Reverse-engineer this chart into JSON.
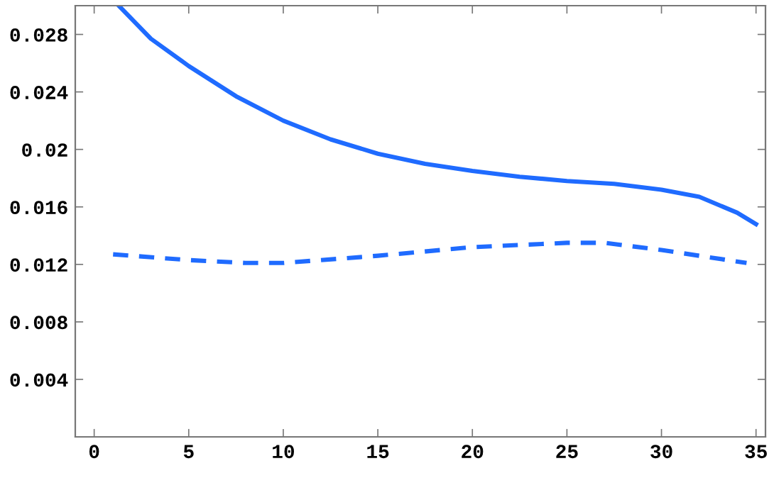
{
  "chart_data": {
    "type": "line",
    "xlim": [
      -1,
      35.5
    ],
    "ylim": [
      0,
      0.03
    ],
    "xticks": [
      0,
      5,
      10,
      15,
      20,
      25,
      30,
      35
    ],
    "yticks": [
      {
        "value": 0.004,
        "label": "0.004"
      },
      {
        "value": 0.008,
        "label": "0.008"
      },
      {
        "value": 0.012,
        "label": "0.012"
      },
      {
        "value": 0.016,
        "label": "0.016"
      },
      {
        "value": 0.02,
        "label": "0.02"
      },
      {
        "value": 0.024,
        "label": "0.024"
      },
      {
        "value": 0.028,
        "label": "0.028"
      }
    ],
    "grid": false,
    "marker": "none",
    "series": [
      {
        "color": "#1f6bff",
        "line_style": "solid",
        "x": [
          1.3,
          3,
          5,
          7.5,
          10,
          12.5,
          15,
          17.5,
          20,
          22.5,
          25,
          27.5,
          30,
          32,
          34,
          35
        ],
        "values": [
          0.03,
          0.0277,
          0.0258,
          0.0237,
          0.022,
          0.0207,
          0.0197,
          0.019,
          0.0185,
          0.0181,
          0.0178,
          0.0176,
          0.0172,
          0.0167,
          0.0156,
          0.0148
        ]
      },
      {
        "color": "#1f6bff",
        "line_style": "dashed",
        "x": [
          1,
          5,
          8,
          10,
          15,
          20,
          25,
          27,
          30,
          34.5
        ],
        "values": [
          0.0127,
          0.0123,
          0.0121,
          0.0121,
          0.0126,
          0.0132,
          0.0135,
          0.0135,
          0.013,
          0.0121
        ]
      }
    ]
  }
}
